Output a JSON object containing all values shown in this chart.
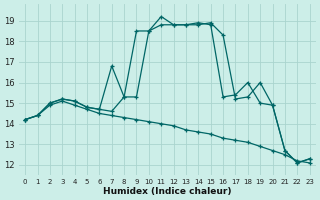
{
  "xlabel": "Humidex (Indice chaleur)",
  "background_color": "#cceee8",
  "grid_color": "#aad4ce",
  "line_color": "#006666",
  "xlim": [
    -0.5,
    23.5
  ],
  "ylim": [
    11.5,
    19.8
  ],
  "xticks": [
    0,
    1,
    2,
    3,
    4,
    5,
    6,
    7,
    8,
    9,
    10,
    11,
    12,
    13,
    14,
    15,
    16,
    17,
    18,
    19,
    20,
    21,
    22,
    23
  ],
  "yticks": [
    12,
    13,
    14,
    15,
    16,
    17,
    18,
    19
  ],
  "lines": [
    {
      "x": [
        0,
        1,
        2,
        3,
        4,
        5,
        6,
        7,
        8,
        9,
        10,
        11,
        12,
        13,
        14,
        15,
        16,
        17,
        18,
        19,
        20,
        21,
        22,
        23
      ],
      "y": [
        14.2,
        14.4,
        14.9,
        15.1,
        14.9,
        14.7,
        14.5,
        14.4,
        14.3,
        14.2,
        14.1,
        14.0,
        13.9,
        13.7,
        13.6,
        13.5,
        13.3,
        13.2,
        13.1,
        12.9,
        12.7,
        12.5,
        12.2,
        12.1
      ]
    },
    {
      "x": [
        0,
        1,
        2,
        3,
        4,
        5,
        6,
        7,
        8,
        9,
        10,
        11,
        12,
        13,
        14,
        15,
        16,
        17,
        18,
        19,
        20,
        21,
        22,
        23
      ],
      "y": [
        14.2,
        14.4,
        15.0,
        15.2,
        15.1,
        14.8,
        14.7,
        14.6,
        15.3,
        18.5,
        18.5,
        18.8,
        18.8,
        18.8,
        18.9,
        18.8,
        15.3,
        15.4,
        16.0,
        15.0,
        14.9,
        12.7,
        12.1,
        12.3
      ]
    },
    {
      "x": [
        0,
        1,
        2,
        3,
        4,
        5,
        6,
        7,
        8,
        9,
        10,
        11,
        12,
        13,
        14,
        15,
        16,
        17,
        18,
        19,
        20,
        21,
        22,
        23
      ],
      "y": [
        14.2,
        14.4,
        15.0,
        15.2,
        15.1,
        14.8,
        14.7,
        16.8,
        15.3,
        15.3,
        18.5,
        19.2,
        18.8,
        18.8,
        18.8,
        18.9,
        18.3,
        15.2,
        15.3,
        16.0,
        14.9,
        12.7,
        12.1,
        12.3
      ]
    }
  ]
}
